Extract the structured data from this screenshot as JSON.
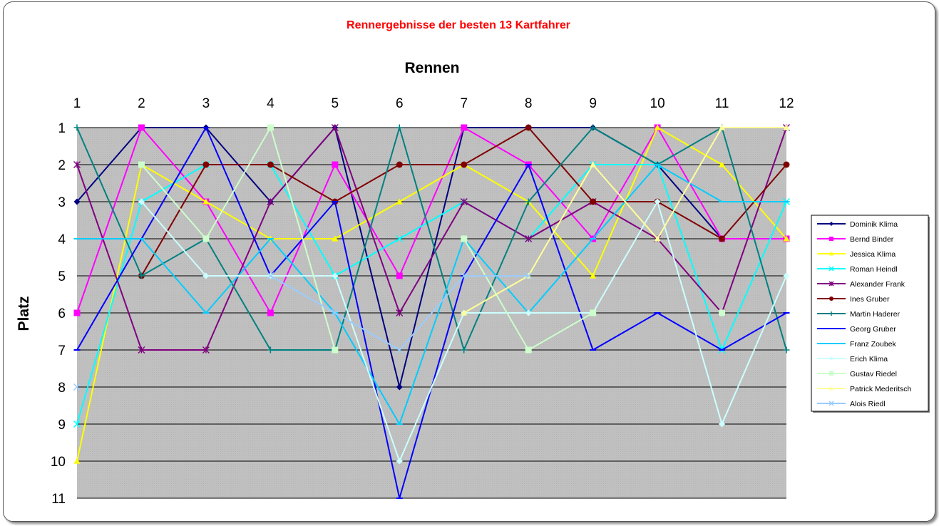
{
  "chart_data": {
    "type": "line",
    "title": "Rennergebnisse der besten 13 Kartfahrer",
    "xlabel": "Rennen",
    "ylabel": "Platz",
    "x": [
      1,
      2,
      3,
      4,
      5,
      6,
      7,
      8,
      9,
      10,
      11,
      12
    ],
    "x_axis_position": "top",
    "ylim": [
      1,
      11
    ],
    "y_inverted": true,
    "grid": true,
    "plot_background": "#c0c0c0",
    "legend": "right",
    "series": [
      {
        "name": "Dominik Klima",
        "color": "#000080",
        "marker": "diamond",
        "values": [
          3,
          1,
          1,
          3,
          1,
          8,
          1,
          1,
          1,
          2,
          4,
          4
        ]
      },
      {
        "name": "Bernd Binder",
        "color": "#ff00ff",
        "marker": "square",
        "values": [
          6,
          1,
          3,
          6,
          2,
          5,
          1,
          2,
          4,
          1,
          4,
          4
        ]
      },
      {
        "name": "Jessica Klima",
        "color": "#ffff00",
        "marker": "triangle",
        "values": [
          10,
          2,
          3,
          4,
          4,
          3,
          2,
          3,
          5,
          1,
          2,
          4
        ]
      },
      {
        "name": "Roman Heindl",
        "color": "#00ffff",
        "marker": "x",
        "values": [
          9,
          3,
          2,
          2,
          5,
          4,
          3,
          4,
          2,
          2,
          7,
          3
        ]
      },
      {
        "name": "Alexander Frank",
        "color": "#800080",
        "marker": "star",
        "values": [
          2,
          7,
          7,
          3,
          1,
          6,
          3,
          4,
          3,
          4,
          6,
          1
        ]
      },
      {
        "name": "Ines Gruber",
        "color": "#800000",
        "marker": "circle",
        "values": [
          null,
          5,
          2,
          2,
          3,
          2,
          2,
          1,
          3,
          3,
          4,
          2
        ]
      },
      {
        "name": "Martin Haderer",
        "color": "#008080",
        "marker": "plus",
        "values": [
          1,
          5,
          4,
          7,
          7,
          1,
          7,
          3,
          1,
          2,
          1,
          7
        ]
      },
      {
        "name": "Georg Gruber",
        "color": "#0000ff",
        "marker": "dash",
        "values": [
          7,
          4,
          1,
          5,
          3,
          11,
          5,
          2,
          7,
          6,
          7,
          6
        ]
      },
      {
        "name": "Franz Zoubek",
        "color": "#00ccff",
        "marker": "dash",
        "values": [
          4,
          4,
          6,
          4,
          6,
          9,
          4,
          6,
          4,
          2,
          3,
          3
        ]
      },
      {
        "name": "Erich Klima",
        "color": "#ccffff",
        "marker": "diamond",
        "values": [
          null,
          3,
          5,
          5,
          5,
          10,
          6,
          6,
          6,
          3,
          9,
          5
        ]
      },
      {
        "name": "Gustav Riedel",
        "color": "#ccffcc",
        "marker": "square",
        "values": [
          null,
          2,
          4,
          1,
          7,
          null,
          4,
          7,
          6,
          null,
          6,
          null
        ]
      },
      {
        "name": "Patrick Mederitsch",
        "color": "#ffff99",
        "marker": "triangle",
        "values": [
          null,
          null,
          null,
          null,
          null,
          null,
          6,
          5,
          2,
          4,
          1,
          1
        ]
      },
      {
        "name": "Alois Riedl",
        "color": "#99ccff",
        "marker": "x",
        "values": [
          8,
          null,
          null,
          5,
          6,
          7,
          5,
          5,
          null,
          null,
          null,
          null
        ]
      }
    ]
  }
}
